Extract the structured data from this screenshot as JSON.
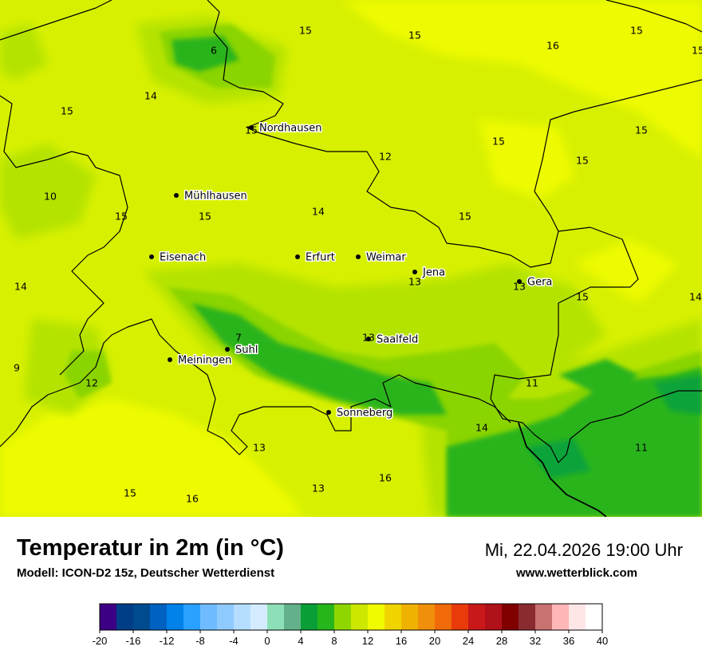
{
  "map": {
    "colors": {
      "background": "#d7f000",
      "warm": "#eefb00",
      "mid": "#b4e300",
      "green": "#8ad400",
      "dark_green": "#29b41e",
      "deep_green": "#0fa33a",
      "border": "#000000"
    },
    "cities": [
      {
        "name": "Nordhausen"
      },
      {
        "name": "Mühlhausen"
      },
      {
        "name": "Eisenach"
      },
      {
        "name": "Erfurt"
      },
      {
        "name": "Weimar"
      },
      {
        "name": "Jena"
      },
      {
        "name": "Gera"
      },
      {
        "name": "Saalfeld"
      },
      {
        "name": "Suhl"
      },
      {
        "name": "Meiningen"
      },
      {
        "name": "Sonneberg"
      }
    ],
    "temperatures": [
      "6",
      "15",
      "15",
      "16",
      "15",
      "15",
      "14",
      "15",
      "15",
      "12",
      "15",
      "15",
      "10",
      "15",
      "15",
      "15",
      "14",
      "15",
      "14",
      "13",
      "13",
      "15",
      "7",
      "13",
      "14",
      "9",
      "12",
      "11",
      "14",
      "13",
      "11",
      "13",
      "16",
      "15",
      "16"
    ]
  },
  "footer": {
    "title": "Temperatur in 2m (in °C)",
    "model": "Modell: ICON-D2 15z, Deutscher Wetterdienst",
    "datetime": "Mi, 22.04.2026 19:00 Uhr",
    "website": "www.wetterblick.com"
  },
  "legend": {
    "min": -20,
    "max": 40,
    "step": 2,
    "tick_labels": [
      "-20",
      "-16",
      "-12",
      "-8",
      "-4",
      "0",
      "4",
      "8",
      "12",
      "16",
      "20",
      "24",
      "28",
      "32",
      "36",
      "40"
    ],
    "colors": [
      "#3b0083",
      "#003e87",
      "#004a8f",
      "#0061c0",
      "#0082ea",
      "#2aa0ff",
      "#6ebcff",
      "#8fcaff",
      "#b5ddff",
      "#d4ebff",
      "#8cdfb6",
      "#62b18a",
      "#0a9e36",
      "#26b51a",
      "#8fd600",
      "#cde800",
      "#f1fb00",
      "#f0d400",
      "#f0b200",
      "#f08f0a",
      "#f06a0a",
      "#e83a0a",
      "#c8181a",
      "#b01018",
      "#800000",
      "#8a2b30",
      "#c87272",
      "#ffb6b6",
      "#ffe6e6",
      "#ffffff"
    ]
  }
}
